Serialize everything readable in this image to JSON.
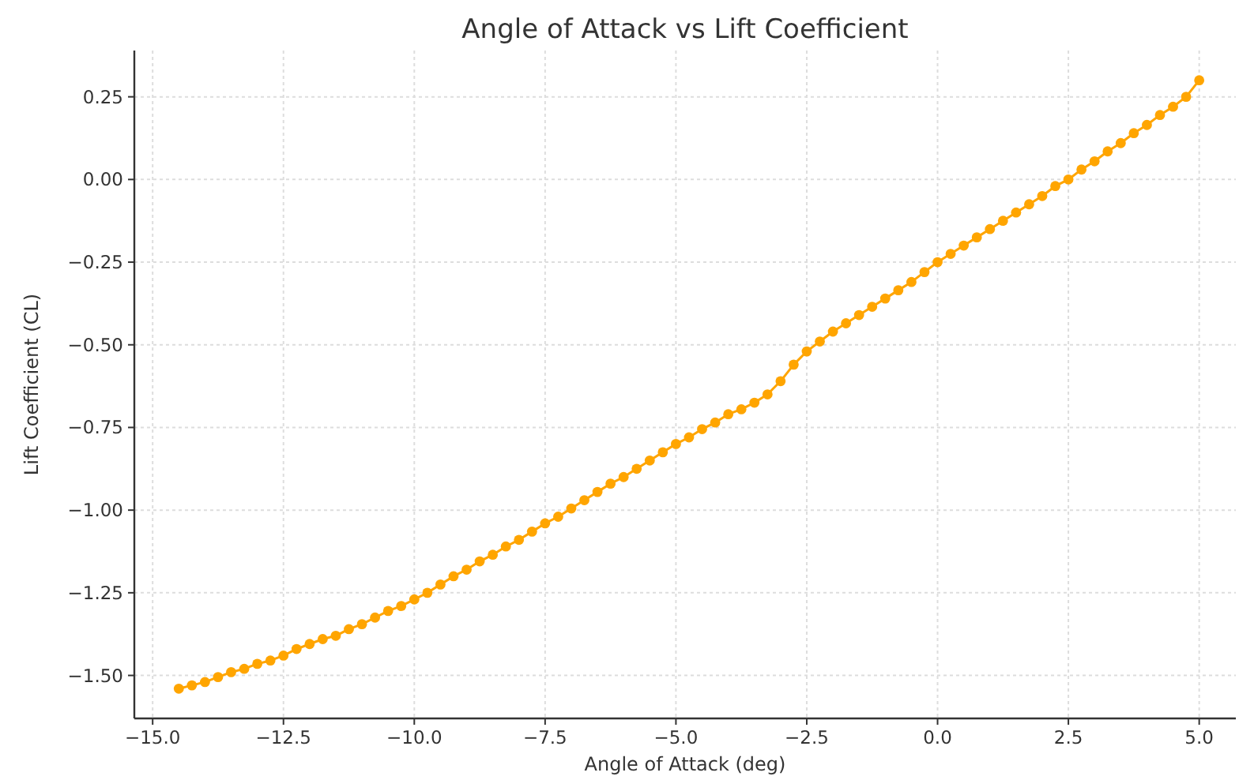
{
  "chart_data": {
    "type": "line",
    "title": "Angle of Attack vs Lift Coefficient",
    "xlabel": "Angle of Attack (deg)",
    "ylabel": "Lift Coefficient (CL)",
    "x": [
      -14.5,
      -14.25,
      -14,
      -13.75,
      -13.5,
      -13.25,
      -13,
      -12.75,
      -12.5,
      -12.25,
      -12,
      -11.75,
      -11.5,
      -11.25,
      -11,
      -10.75,
      -10.5,
      -10.25,
      -10,
      -9.75,
      -9.5,
      -9.25,
      -9,
      -8.75,
      -8.5,
      -8.25,
      -8,
      -7.75,
      -7.5,
      -7.25,
      -7,
      -6.75,
      -6.5,
      -6.25,
      -6,
      -5.75,
      -5.5,
      -5.25,
      -5,
      -4.75,
      -4.5,
      -4.25,
      -4,
      -3.75,
      -3.5,
      -3.25,
      -3,
      -2.75,
      -2.5,
      -2.25,
      -2,
      -1.75,
      -1.5,
      -1.25,
      -1,
      -0.75,
      -0.5,
      -0.25,
      0,
      0.25,
      0.5,
      0.75,
      1,
      1.25,
      1.5,
      1.75,
      2,
      2.25,
      2.5,
      2.75,
      3,
      3.25,
      3.5,
      3.75,
      4,
      4.25,
      4.5,
      4.75,
      5
    ],
    "series": [
      {
        "color": "#ffa500",
        "values": [
          -1.54,
          -1.53,
          -1.52,
          -1.505,
          -1.49,
          -1.48,
          -1.465,
          -1.455,
          -1.44,
          -1.42,
          -1.405,
          -1.39,
          -1.38,
          -1.36,
          -1.345,
          -1.325,
          -1.305,
          -1.29,
          -1.27,
          -1.25,
          -1.225,
          -1.2,
          -1.18,
          -1.155,
          -1.135,
          -1.11,
          -1.09,
          -1.065,
          -1.04,
          -1.02,
          -0.995,
          -0.97,
          -0.945,
          -0.92,
          -0.9,
          -0.875,
          -0.85,
          -0.825,
          -0.8,
          -0.78,
          -0.755,
          -0.735,
          -0.71,
          -0.695,
          -0.675,
          -0.65,
          -0.61,
          -0.56,
          -0.52,
          -0.49,
          -0.46,
          -0.435,
          -0.41,
          -0.385,
          -0.36,
          -0.335,
          -0.31,
          -0.28,
          -0.25,
          -0.225,
          -0.2,
          -0.175,
          -0.15,
          -0.125,
          -0.1,
          -0.075,
          -0.05,
          -0.02,
          0.0,
          0.03,
          0.055,
          0.085,
          0.11,
          0.14,
          0.165,
          0.195,
          0.22,
          0.25,
          0.3
        ]
      }
    ],
    "xlim": [
      -15.35,
      5.7
    ],
    "ylim": [
      -1.63,
      0.39
    ],
    "xticks": [
      {
        "value": -15,
        "label": "−15.0"
      },
      {
        "value": -12.5,
        "label": "−12.5"
      },
      {
        "value": -10,
        "label": "−10.0"
      },
      {
        "value": -7.5,
        "label": "−7.5"
      },
      {
        "value": -5,
        "label": "−5.0"
      },
      {
        "value": -2.5,
        "label": "−2.5"
      },
      {
        "value": 0,
        "label": "0.0"
      },
      {
        "value": 2.5,
        "label": "2.5"
      },
      {
        "value": 5,
        "label": "5.0"
      }
    ],
    "yticks": [
      {
        "value": -1.5,
        "label": "−1.50"
      },
      {
        "value": -1.25,
        "label": "−1.25"
      },
      {
        "value": -1,
        "label": "−1.00"
      },
      {
        "value": -0.75,
        "label": "−0.75"
      },
      {
        "value": -0.5,
        "label": "−0.50"
      },
      {
        "value": -0.25,
        "label": "−0.25"
      },
      {
        "value": 0,
        "label": "0.00"
      },
      {
        "value": 0.25,
        "label": "0.25"
      }
    ],
    "grid": true,
    "marker": "circle",
    "line_style": "solid"
  }
}
